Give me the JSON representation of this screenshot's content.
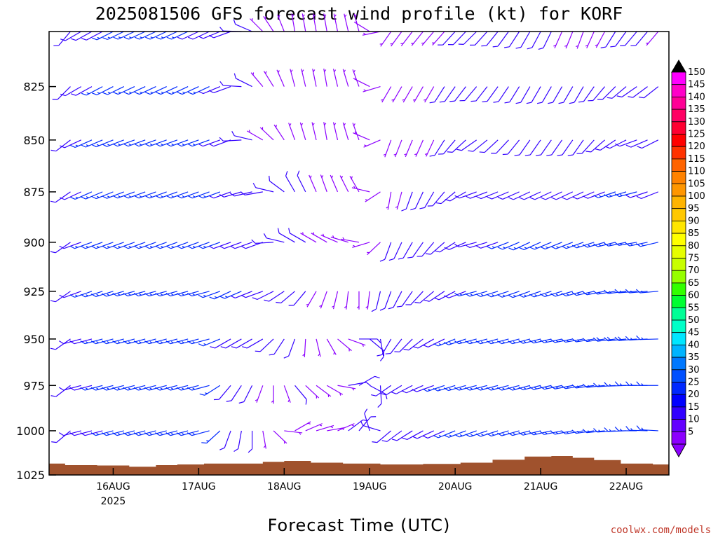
{
  "chart_data": {
    "type": "wind_profile",
    "title": "2025081506 GFS forecast wind profile (kt) for KORF",
    "xlabel": "Forecast Time (UTC)",
    "credit": "coolwx.com/models",
    "y_axis": {
      "label": "",
      "invert": true,
      "range": [
        1025,
        800
      ],
      "ticks": [
        {
          "value": 825,
          "label": "825"
        },
        {
          "value": 850,
          "label": "850"
        },
        {
          "value": 875,
          "label": "875"
        },
        {
          "value": 900,
          "label": "900"
        },
        {
          "value": 925,
          "label": "925"
        },
        {
          "value": 950,
          "label": "950"
        },
        {
          "value": 975,
          "label": "975"
        },
        {
          "value": 1000,
          "label": "1000"
        },
        {
          "value": 1025,
          "label": "1025"
        }
      ]
    },
    "x_axis": {
      "range_hours": [
        0,
        174
      ],
      "ticks": [
        {
          "hour": 18,
          "label": "16AUG",
          "sub": "2025"
        },
        {
          "hour": 42,
          "label": "17AUG",
          "sub": ""
        },
        {
          "hour": 66,
          "label": "18AUG",
          "sub": ""
        },
        {
          "hour": 90,
          "label": "19AUG",
          "sub": ""
        },
        {
          "hour": 114,
          "label": "20AUG",
          "sub": ""
        },
        {
          "hour": 138,
          "label": "21AUG",
          "sub": ""
        },
        {
          "hour": 162,
          "label": "22AUG",
          "sub": ""
        }
      ]
    },
    "colorbar": {
      "levels": [
        "150",
        "145",
        "140",
        "135",
        "130",
        "125",
        "120",
        "115",
        "110",
        "105",
        "100",
        "95",
        "90",
        "85",
        "80",
        "75",
        "70",
        "65",
        "60",
        "55",
        "50",
        "45",
        "40",
        "35",
        "30",
        "25",
        "20",
        "15",
        "10",
        "5"
      ],
      "colors": [
        "#ff00ff",
        "#ff00c8",
        "#ff0096",
        "#ff0064",
        "#ff0032",
        "#ff0000",
        "#ff3200",
        "#ff6400",
        "#ff8200",
        "#ff9600",
        "#ffb400",
        "#ffc800",
        "#ffe600",
        "#ffff00",
        "#e6ff00",
        "#c8ff00",
        "#96ff00",
        "#32ff00",
        "#00ff32",
        "#00ff96",
        "#00ffc8",
        "#00e6ff",
        "#00b4ff",
        "#0078ff",
        "#0050ff",
        "#0028ff",
        "#0000ff",
        "#3200ff",
        "#6400ff",
        "#8c00ff"
      ],
      "top_arrow_color": "#000000",
      "bottom_arrow_color": "#8c00ff"
    },
    "barb_colors": {
      "light": "#8c00ff",
      "moderate": "#3200ff",
      "strong": "#0028ff"
    },
    "terrain_color": "#a0522d",
    "pressure_levels": [
      1025,
      1000,
      975,
      950,
      925,
      900,
      875,
      850,
      825,
      800
    ],
    "surface_pressure": [
      {
        "hour": 0,
        "p": 1018.5
      },
      {
        "hour": 9,
        "p": 1019.4
      },
      {
        "hour": 18,
        "p": 1019.6
      },
      {
        "hour": 27,
        "p": 1020.3
      },
      {
        "hour": 33,
        "p": 1019.4
      },
      {
        "hour": 39,
        "p": 1019.0
      },
      {
        "hour": 48,
        "p": 1018.5
      },
      {
        "hour": 57,
        "p": 1018.5
      },
      {
        "hour": 63,
        "p": 1017.5
      },
      {
        "hour": 69,
        "p": 1017.0
      },
      {
        "hour": 78,
        "p": 1018.0
      },
      {
        "hour": 87,
        "p": 1018.5
      },
      {
        "hour": 99,
        "p": 1019.0
      },
      {
        "hour": 111,
        "p": 1018.7
      },
      {
        "hour": 120,
        "p": 1018.0
      },
      {
        "hour": 129,
        "p": 1016.3
      },
      {
        "hour": 138,
        "p": 1014.5
      },
      {
        "hour": 144,
        "p": 1014.2
      },
      {
        "hour": 150,
        "p": 1015.2
      },
      {
        "hour": 156,
        "p": 1016.5
      },
      {
        "hour": 165,
        "p": 1018.5
      },
      {
        "hour": 174,
        "p": 1019.0
      }
    ],
    "wind_keyframes": [
      {
        "hour": 3,
        "winds": [
          [
            200,
            7
          ],
          [
            205,
            8
          ],
          [
            210,
            8
          ],
          [
            215,
            7
          ],
          [
            220,
            6
          ],
          [
            220,
            6
          ],
          [
            225,
            5
          ],
          [
            220,
            5
          ],
          [
            210,
            5
          ],
          [
            200,
            5
          ]
        ]
      },
      {
        "hour": 9,
        "winds": [
          [
            250,
            9
          ],
          [
            255,
            10
          ],
          [
            255,
            11
          ],
          [
            255,
            11
          ],
          [
            250,
            12
          ],
          [
            250,
            12
          ],
          [
            245,
            12
          ],
          [
            245,
            12
          ],
          [
            240,
            11
          ],
          [
            240,
            10
          ]
        ]
      },
      {
        "hour": 24,
        "winds": [
          [
            255,
            14
          ],
          [
            255,
            16
          ],
          [
            255,
            17
          ],
          [
            255,
            17
          ],
          [
            255,
            17
          ],
          [
            250,
            17
          ],
          [
            250,
            16
          ],
          [
            250,
            16
          ],
          [
            245,
            16
          ],
          [
            245,
            15
          ]
        ]
      },
      {
        "hour": 45,
        "winds": [
          [
            255,
            14
          ],
          [
            255,
            15
          ],
          [
            255,
            16
          ],
          [
            255,
            16
          ],
          [
            255,
            16
          ],
          [
            250,
            16
          ],
          [
            250,
            15
          ],
          [
            250,
            14
          ],
          [
            245,
            13
          ],
          [
            245,
            12
          ]
        ]
      },
      {
        "hour": 51,
        "winds": [
          [
            190,
            9
          ],
          [
            200,
            10
          ],
          [
            220,
            11
          ],
          [
            240,
            12
          ],
          [
            245,
            13
          ],
          [
            250,
            12
          ],
          [
            250,
            11
          ],
          [
            250,
            10
          ],
          [
            250,
            10
          ],
          [
            250,
            11
          ]
        ]
      },
      {
        "hour": 60,
        "winds": [
          [
            150,
            6
          ],
          [
            170,
            7
          ],
          [
            200,
            6
          ],
          [
            240,
            9
          ],
          [
            250,
            12
          ],
          [
            250,
            10
          ],
          [
            260,
            8
          ],
          [
            300,
            7
          ],
          [
            320,
            7
          ],
          [
            315,
            7
          ]
        ]
      },
      {
        "hour": 69,
        "winds": [
          [
            10,
            6
          ],
          [
            60,
            7
          ],
          [
            140,
            8
          ],
          [
            200,
            8
          ],
          [
            230,
            9
          ],
          [
            300,
            8
          ],
          [
            330,
            8
          ],
          [
            340,
            7
          ],
          [
            345,
            7
          ],
          [
            350,
            7
          ]
        ]
      },
      {
        "hour": 78,
        "winds": [
          [
            60,
            8
          ],
          [
            80,
            6
          ],
          [
            120,
            5
          ],
          [
            150,
            5
          ],
          [
            200,
            6
          ],
          [
            300,
            7
          ],
          [
            340,
            7
          ],
          [
            350,
            6
          ],
          [
            350,
            5
          ],
          [
            350,
            5
          ]
        ]
      },
      {
        "hour": 87,
        "winds": [
          [
            30,
            9
          ],
          [
            40,
            10
          ],
          [
            60,
            9
          ],
          [
            90,
            8
          ],
          [
            180,
            7
          ],
          [
            280,
            6
          ],
          [
            330,
            6
          ],
          [
            340,
            6
          ],
          [
            340,
            6
          ],
          [
            345,
            6
          ]
        ]
      },
      {
        "hour": 96,
        "winds": [
          [
            230,
            8
          ],
          [
            230,
            10
          ],
          [
            235,
            11
          ],
          [
            210,
            9
          ],
          [
            200,
            8
          ],
          [
            200,
            8
          ],
          [
            190,
            7
          ],
          [
            200,
            7
          ],
          [
            210,
            7
          ],
          [
            215,
            7
          ]
        ]
      },
      {
        "hour": 108,
        "winds": [
          [
            240,
            9
          ],
          [
            245,
            11
          ],
          [
            250,
            12
          ],
          [
            240,
            11
          ],
          [
            230,
            10
          ],
          [
            220,
            9
          ],
          [
            210,
            8
          ],
          [
            205,
            7
          ],
          [
            210,
            7
          ],
          [
            220,
            7
          ]
        ]
      },
      {
        "hour": 120,
        "winds": [
          [
            245,
            11
          ],
          [
            250,
            14
          ],
          [
            255,
            15
          ],
          [
            255,
            14
          ],
          [
            255,
            13
          ],
          [
            255,
            12
          ],
          [
            250,
            11
          ],
          [
            235,
            10
          ],
          [
            220,
            9
          ],
          [
            225,
            8
          ]
        ]
      },
      {
        "hour": 135,
        "winds": [
          [
            250,
            12
          ],
          [
            255,
            15
          ],
          [
            255,
            16
          ],
          [
            255,
            15
          ],
          [
            250,
            14
          ],
          [
            245,
            13
          ],
          [
            245,
            12
          ],
          [
            215,
            10
          ],
          [
            210,
            9
          ],
          [
            210,
            8
          ]
        ]
      },
      {
        "hour": 150,
        "winds": [
          [
            255,
            13
          ],
          [
            260,
            16
          ],
          [
            260,
            17
          ],
          [
            260,
            17
          ],
          [
            255,
            16
          ],
          [
            250,
            14
          ],
          [
            245,
            12
          ],
          [
            215,
            9
          ],
          [
            210,
            8
          ],
          [
            200,
            7
          ]
        ]
      },
      {
        "hour": 165,
        "winds": [
          [
            270,
            12
          ],
          [
            270,
            15
          ],
          [
            270,
            17
          ],
          [
            265,
            18
          ],
          [
            265,
            17
          ],
          [
            260,
            15
          ],
          [
            255,
            13
          ],
          [
            250,
            11
          ],
          [
            235,
            9
          ],
          [
            220,
            8
          ]
        ]
      },
      {
        "hour": 174,
        "winds": [
          [
            275,
            10
          ],
          [
            275,
            13
          ],
          [
            270,
            14
          ],
          [
            270,
            14
          ],
          [
            265,
            13
          ],
          [
            255,
            12
          ],
          [
            245,
            10
          ],
          [
            240,
            9
          ],
          [
            230,
            8
          ],
          [
            220,
            7
          ]
        ]
      }
    ],
    "time_step_hours": 3
  }
}
